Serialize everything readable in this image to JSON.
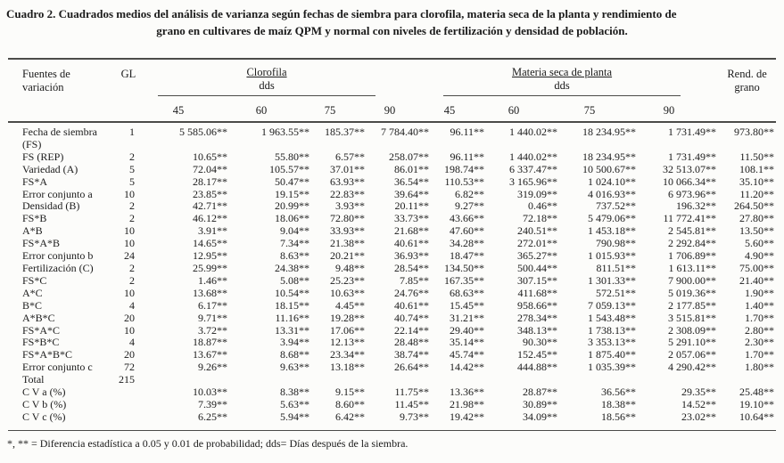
{
  "title": {
    "line1": "Cuadro 2. Cuadrados medios del análisis de varianza según fechas de siembra para clorofila, materia seca de la planta y rendimiento de",
    "line2": "grano en cultivares de maíz QPM y normal con niveles de fertilización y densidad de población."
  },
  "table": {
    "header": {
      "sources": "Fuentes de variación",
      "gl": "GL",
      "group1": "Clorofila",
      "group2": "Materia seca de planta",
      "dds": "dds",
      "dds_cols": [
        "45",
        "60",
        "75",
        "90"
      ],
      "rend": "Rend. de grano"
    },
    "rows": [
      {
        "label": "Fecha de siembra (FS)",
        "gl": "1",
        "values": [
          "5 585.06**",
          "1 963.55**",
          "185.37**",
          "7 784.40**",
          "96.11**",
          "1 440.02**",
          "18 234.95**",
          "1 731.49**",
          "973.80**"
        ]
      },
      {
        "label": "FS (REP)",
        "gl": "2",
        "values": [
          "10.65**",
          "55.80**",
          "6.57**",
          "258.07**",
          "96.11**",
          "1 440.02**",
          "18 234.95**",
          "1 731.49**",
          "11.50**"
        ]
      },
      {
        "label": "Variedad (A)",
        "gl": "5",
        "values": [
          "72.04**",
          "105.57**",
          "37.01**",
          "86.01**",
          "198.74**",
          "6 337.47**",
          "10 500.67**",
          "32 513.07**",
          "108.1**"
        ]
      },
      {
        "label": "FS*A",
        "gl": "5",
        "values": [
          "28.17**",
          "50.47**",
          "63.93**",
          "36.54**",
          "110.53**",
          "3 165.96**",
          "1 024.10**",
          "10 066.34**",
          "35.10**"
        ]
      },
      {
        "label": "Error conjunto a",
        "gl": "10",
        "values": [
          "23.85**",
          "19.15**",
          "22.83**",
          "39.64**",
          "6.82**",
          "319.09**",
          "4 016.93**",
          "6 973.96**",
          "11.20**"
        ]
      },
      {
        "label": "Densidad (B)",
        "gl": "2",
        "values": [
          "42.71**",
          "20.99**",
          "3.93**",
          "20.11**",
          "9.27**",
          "0.46**",
          "737.52**",
          "196.32**",
          "264.50**"
        ]
      },
      {
        "label": "FS*B",
        "gl": "2",
        "values": [
          "46.12**",
          "18.06**",
          "72.80**",
          "33.73**",
          "43.66**",
          "72.18**",
          "5 479.06**",
          "11 772.41**",
          "27.80**"
        ]
      },
      {
        "label": "A*B",
        "gl": "10",
        "values": [
          "3.91**",
          "9.04**",
          "33.93**",
          "21.68**",
          "47.60**",
          "240.51**",
          "1 453.18**",
          "2 545.81**",
          "13.50**"
        ]
      },
      {
        "label": "FS*A*B",
        "gl": "10",
        "values": [
          "14.65**",
          "7.34**",
          "21.38**",
          "40.61**",
          "34.28**",
          "272.01**",
          "790.98**",
          "2 292.84**",
          "5.60**"
        ]
      },
      {
        "label": "Error conjunto b",
        "gl": "24",
        "values": [
          "12.95**",
          "8.63**",
          "20.21**",
          "36.93**",
          "18.47**",
          "365.27**",
          "1 015.93**",
          "1 706.89**",
          "4.90**"
        ]
      },
      {
        "label": "Fertilización (C)",
        "gl": "2",
        "values": [
          "25.99**",
          "24.38**",
          "9.48**",
          "28.54**",
          "134.50**",
          "500.44**",
          "811.51**",
          "1 613.11**",
          "75.00**"
        ]
      },
      {
        "label": "FS*C",
        "gl": "2",
        "values": [
          "1.46**",
          "5.08**",
          "25.23**",
          "7.85**",
          "167.35**",
          "307.15**",
          "1 301.33**",
          "7 900.00**",
          "21.40**"
        ]
      },
      {
        "label": "A*C",
        "gl": "10",
        "values": [
          "13.68**",
          "10.54**",
          "10.63**",
          "24.76**",
          "68.63**",
          "411.68**",
          "572.51**",
          "5 019.36**",
          "1.90**"
        ]
      },
      {
        "label": "B*C",
        "gl": "4",
        "values": [
          "6.17**",
          "18.15**",
          "4.45**",
          "40.61**",
          "15.45**",
          "958.66**",
          "7 059.13**",
          "2 177.85**",
          "1.40**"
        ]
      },
      {
        "label": "A*B*C",
        "gl": "20",
        "values": [
          "9.71**",
          "11.16**",
          "19.28**",
          "40.74**",
          "31.21**",
          "278.34**",
          "1 543.48**",
          "3 515.81**",
          "1.70**"
        ]
      },
      {
        "label": "FS*A*C",
        "gl": "10",
        "values": [
          "3.72**",
          "13.31**",
          "17.06**",
          "22.14**",
          "29.40**",
          "348.13**",
          "1 738.13**",
          "2 308.09**",
          "2.80**"
        ]
      },
      {
        "label": "FS*B*C",
        "gl": "4",
        "values": [
          "18.87**",
          "3.94**",
          "12.13**",
          "28.48**",
          "35.14**",
          "90.30**",
          "3 353.13**",
          "5 291.10**",
          "2.30**"
        ]
      },
      {
        "label": "FS*A*B*C",
        "gl": "20",
        "values": [
          "13.67**",
          "8.68**",
          "23.34**",
          "38.74**",
          "45.74**",
          "152.45**",
          "1 875.40**",
          "2 057.06**",
          "1.70**"
        ]
      },
      {
        "label": "Error conjunto c",
        "gl": "72",
        "values": [
          "9.26**",
          "9.63**",
          "13.18**",
          "26.64**",
          "14.42**",
          "444.88**",
          "1 035.39**",
          "4 290.42**",
          "1.80**"
        ]
      },
      {
        "label": "Total",
        "gl": "215",
        "values": [
          "",
          "",
          "",
          "",
          "",
          "",
          "",
          "",
          ""
        ]
      },
      {
        "label": "C V a (%)",
        "gl": "",
        "values": [
          "10.03**",
          "8.38**",
          "9.15**",
          "11.75**",
          "13.36**",
          "28.87**",
          "36.56**",
          "29.35**",
          "25.48**"
        ]
      },
      {
        "label": "C V b (%)",
        "gl": "",
        "values": [
          "7.39**",
          "5.63**",
          "8.60**",
          "11.45**",
          "21.98**",
          "30.89**",
          "18.38**",
          "14.52**",
          "19.10**"
        ]
      },
      {
        "label": "C V c (%)",
        "gl": "",
        "values": [
          "6.25**",
          "5.94**",
          "6.42**",
          "9.73**",
          "19.42**",
          "34.09**",
          "18.56**",
          "23.02**",
          "10.64**"
        ]
      }
    ]
  },
  "footnote": "*, ** = Diferencia estadística a 0.05 y 0.01 de probabilidad; dds= Días después de la siembra."
}
